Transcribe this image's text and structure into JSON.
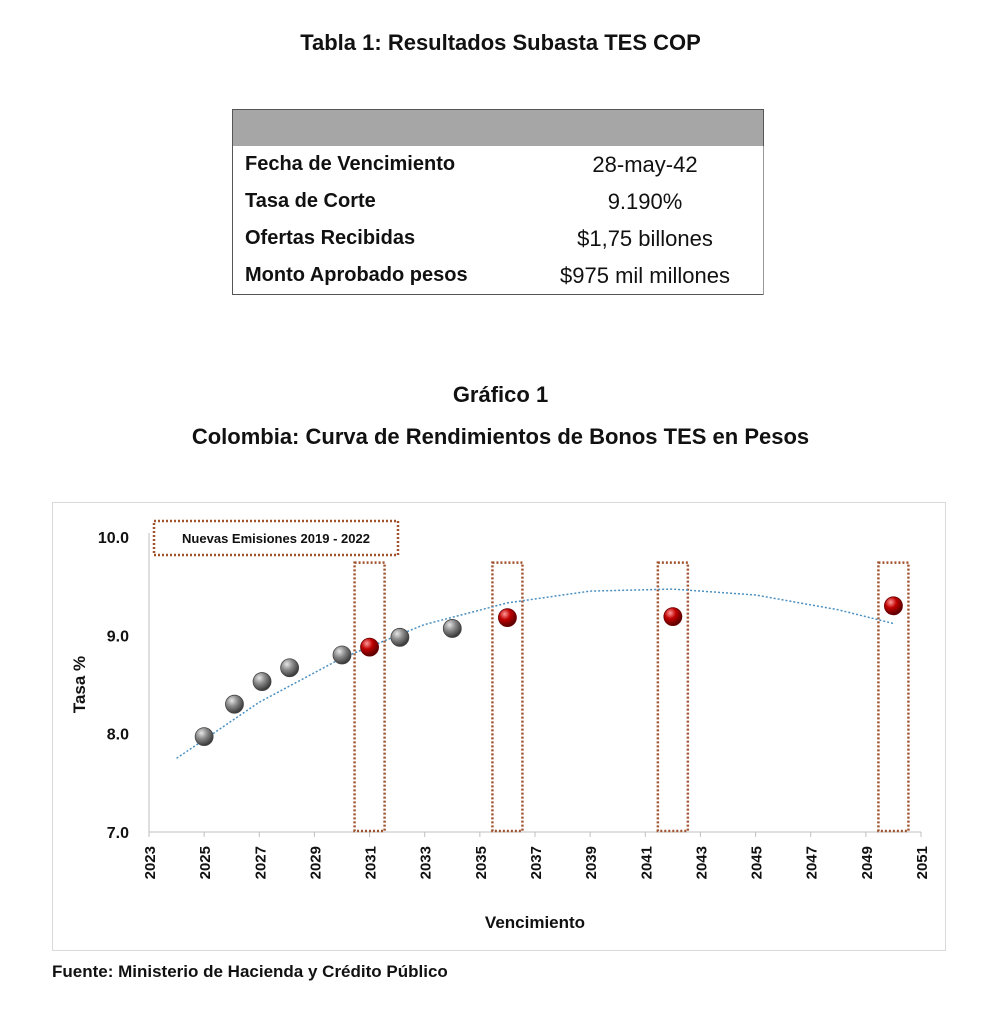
{
  "table": {
    "title": "Tabla 1: Resultados Subasta TES COP",
    "rows": [
      {
        "label": "Fecha de Vencimiento",
        "value": "28-may-42"
      },
      {
        "label": "Tasa de Corte",
        "value": "9.190%"
      },
      {
        "label": "Ofertas Recibidas",
        "value": "$1,75 billones"
      },
      {
        "label": "Monto Aprobado pesos",
        "value": "$975 mil millones"
      }
    ]
  },
  "chart_header": {
    "label": "Gráfico 1",
    "title": "Colombia: Curva de Rendimientos de Bonos TES en Pesos"
  },
  "chart_data": {
    "type": "scatter",
    "xlabel": "Vencimiento",
    "ylabel": "Tasa %",
    "xlim": [
      2023,
      2051
    ],
    "ylim": [
      7.0,
      10.0
    ],
    "x_ticks": [
      2023,
      2025,
      2027,
      2029,
      2031,
      2033,
      2035,
      2037,
      2039,
      2041,
      2043,
      2045,
      2047,
      2049,
      2051
    ],
    "y_ticks": [
      7.0,
      8.0,
      9.0,
      10.0
    ],
    "annotation": "Nuevas Emisiones 2019 - 2022",
    "series": [
      {
        "color": "#7f7f7f",
        "points": [
          {
            "x": 2025.0,
            "y": 7.97
          },
          {
            "x": 2026.1,
            "y": 8.3
          },
          {
            "x": 2027.1,
            "y": 8.53
          },
          {
            "x": 2028.1,
            "y": 8.67
          },
          {
            "x": 2030.0,
            "y": 8.8
          },
          {
            "x": 2032.1,
            "y": 8.98
          },
          {
            "x": 2034.0,
            "y": 9.07
          }
        ]
      },
      {
        "color": "#c00000",
        "points": [
          {
            "x": 2031.0,
            "y": 8.88
          },
          {
            "x": 2036.0,
            "y": 9.18
          },
          {
            "x": 2042.0,
            "y": 9.19
          },
          {
            "x": 2050.0,
            "y": 9.3
          }
        ]
      }
    ],
    "trendline": {
      "type": "polynomial-2",
      "color": "#4a90c2",
      "points": [
        {
          "x": 2024.0,
          "y": 7.75
        },
        {
          "x": 2027.0,
          "y": 8.32
        },
        {
          "x": 2030.0,
          "y": 8.77
        },
        {
          "x": 2033.0,
          "y": 9.11
        },
        {
          "x": 2036.0,
          "y": 9.33
        },
        {
          "x": 2039.0,
          "y": 9.45
        },
        {
          "x": 2042.0,
          "y": 9.47
        },
        {
          "x": 2045.0,
          "y": 9.41
        },
        {
          "x": 2048.0,
          "y": 9.26
        },
        {
          "x": 2050.0,
          "y": 9.12
        }
      ]
    },
    "highlight_years": [
      2031,
      2036,
      2042,
      2050
    ],
    "highlight_color": "#a0522d"
  },
  "source": "Fuente: Ministerio de Hacienda y Crédito Público"
}
